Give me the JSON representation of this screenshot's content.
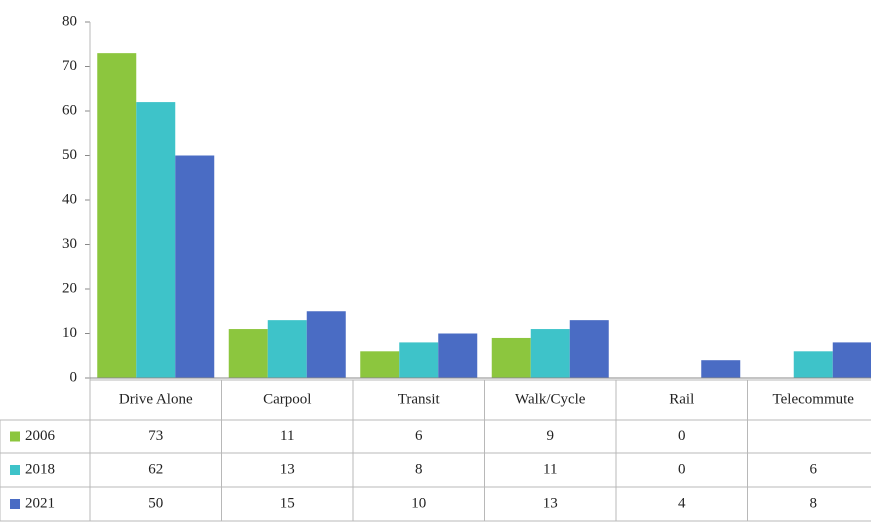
{
  "chart_data": {
    "type": "bar",
    "categories": [
      "Drive Alone",
      "Carpool",
      "Transit",
      "Walk/Cycle",
      "Rail",
      "Telecommute"
    ],
    "series": [
      {
        "name": "2006",
        "color": "#8cc63e",
        "values": [
          73,
          11,
          6,
          9,
          0,
          null
        ]
      },
      {
        "name": "2018",
        "color": "#3ec3c9",
        "values": [
          62,
          13,
          8,
          11,
          0,
          6
        ]
      },
      {
        "name": "2021",
        "color": "#4a6cc4",
        "values": [
          50,
          15,
          10,
          13,
          4,
          8
        ]
      }
    ],
    "ylim": [
      0,
      80
    ],
    "yticks": [
      0,
      10,
      20,
      30,
      40,
      50,
      60,
      70,
      80
    ],
    "grid": false
  }
}
